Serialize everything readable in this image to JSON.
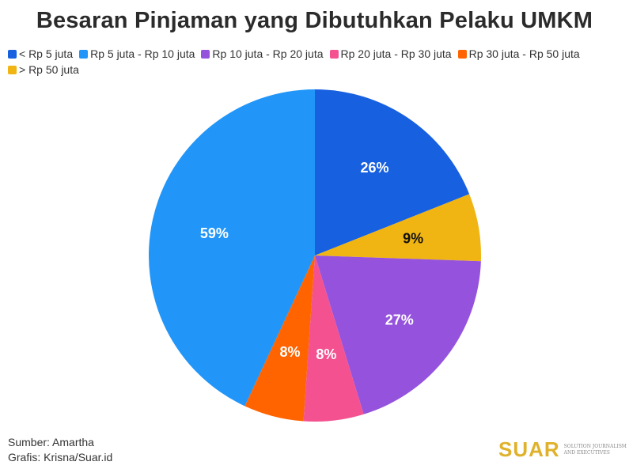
{
  "chart_data": {
    "type": "pie",
    "title": "Besaran Pinjaman yang Dibutuhkan Pelaku UMKM",
    "legend_position": "top",
    "start_angle_deg": 0,
    "slices": [
      {
        "label": "< Rp 5 juta",
        "value": 26,
        "display": "26%",
        "color": "#1760e0",
        "label_color": "#ffffff",
        "order": 0
      },
      {
        "label": "> Rp 50 juta",
        "value": 9,
        "display": "9%",
        "color": "#f0b513",
        "label_color": "#111111",
        "order": 5
      },
      {
        "label": "Rp 10 juta - Rp 20 juta",
        "value": 27,
        "display": "27%",
        "color": "#9553dd",
        "label_color": "#ffffff",
        "order": 2
      },
      {
        "label": "Rp 20 juta - Rp 30 juta",
        "value": 8,
        "display": "8%",
        "color": "#f45190",
        "label_color": "#ffffff",
        "order": 3
      },
      {
        "label": "Rp 30 juta - Rp 50 juta",
        "value": 8,
        "display": "8%",
        "color": "#ff6400",
        "label_color": "#ffffff",
        "order": 4
      },
      {
        "label": "Rp 5 juta - Rp 10 juta",
        "value": 59,
        "display": "59%",
        "color": "#2196f8",
        "label_color": "#ffffff",
        "order": 1
      }
    ]
  },
  "legend": [
    {
      "label": "< Rp 5 juta",
      "color": "#1760e0"
    },
    {
      "label": "Rp 5 juta - Rp 10 juta",
      "color": "#2196f8"
    },
    {
      "label": "Rp 10 juta - Rp 20 juta",
      "color": "#9553dd"
    },
    {
      "label": "Rp 20 juta - Rp 30 juta",
      "color": "#f45190"
    },
    {
      "label": "Rp 30 juta - Rp 50 juta",
      "color": "#ff6400"
    },
    {
      "label": "> Rp 50 juta",
      "color": "#f0b513"
    }
  ],
  "footer": {
    "source": "Sumber: Amartha",
    "credit": "Grafis: Krisna/Suar.id"
  },
  "logo": {
    "word": "SUAR",
    "tagline_1": "SOLUTION JOURNALISM",
    "tagline_2": "AND EXECUTIVES",
    "accent": "#e0b12a"
  }
}
